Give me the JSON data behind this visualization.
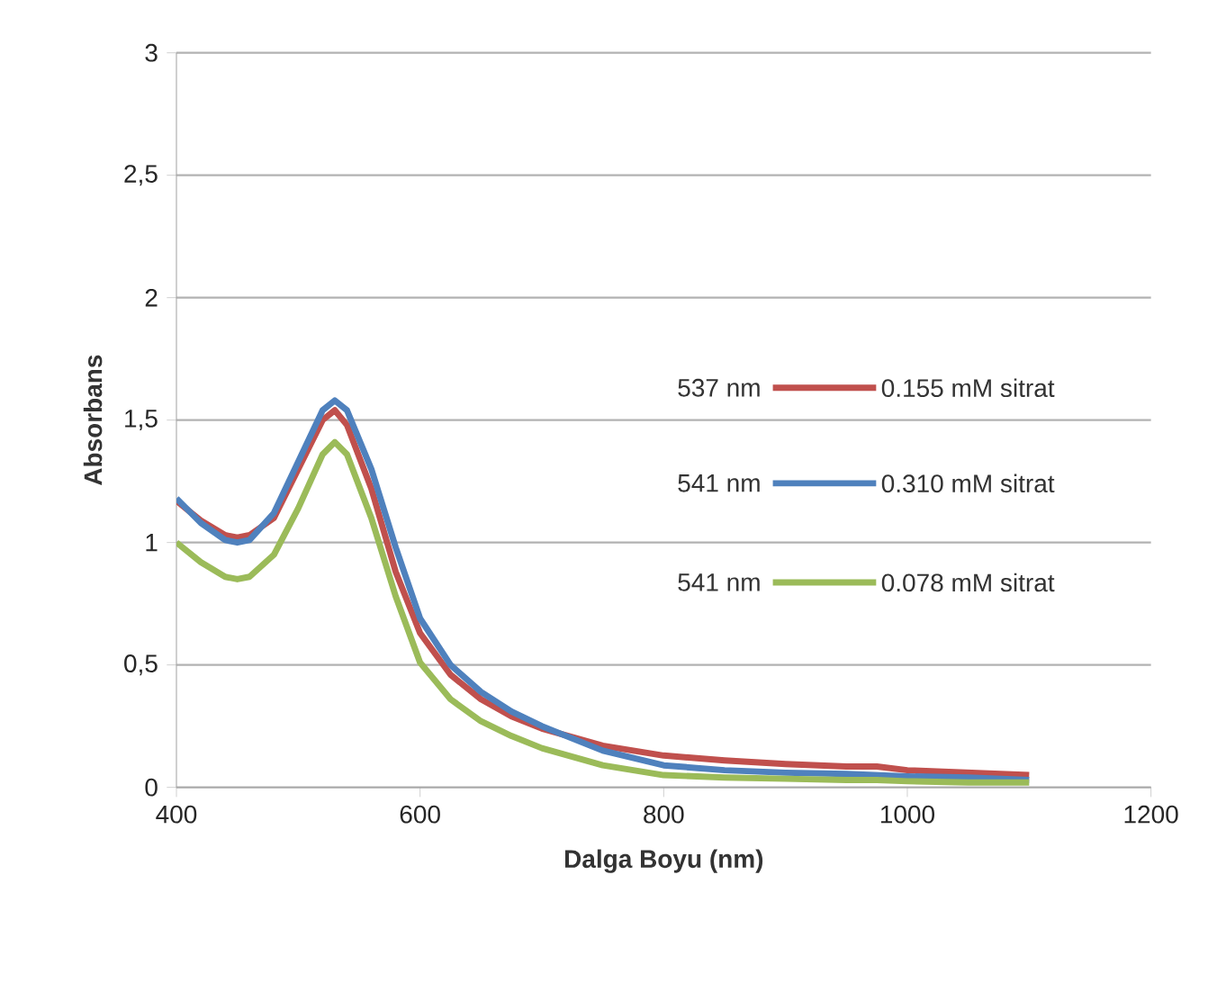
{
  "chart_data": {
    "type": "line",
    "xlabel": "Dalga Boyu (nm)",
    "ylabel": "Absorbans",
    "x": [
      400,
      420,
      440,
      450,
      460,
      480,
      500,
      520,
      530,
      540,
      560,
      580,
      600,
      625,
      650,
      675,
      700,
      750,
      800,
      850,
      900,
      950,
      975,
      1000,
      1050,
      1100
    ],
    "series": [
      {
        "name": "0.155 mM sitrat",
        "color": "#c0504d",
        "values": [
          1.17,
          1.09,
          1.03,
          1.02,
          1.03,
          1.1,
          1.3,
          1.5,
          1.54,
          1.48,
          1.22,
          0.88,
          0.63,
          0.46,
          0.36,
          0.29,
          0.24,
          0.17,
          0.13,
          0.11,
          0.095,
          0.085,
          0.085,
          0.07,
          0.06,
          0.05
        ]
      },
      {
        "name": "0.310 mM sitrat",
        "color": "#4f81bd",
        "values": [
          1.18,
          1.08,
          1.01,
          1.0,
          1.01,
          1.12,
          1.33,
          1.54,
          1.58,
          1.54,
          1.3,
          0.98,
          0.69,
          0.5,
          0.39,
          0.31,
          0.25,
          0.15,
          0.09,
          0.07,
          0.06,
          0.055,
          0.05,
          0.045,
          0.04,
          0.03
        ]
      },
      {
        "name": "0.078 mM sitrat",
        "color": "#9bbb59",
        "values": [
          1.0,
          0.92,
          0.86,
          0.85,
          0.86,
          0.95,
          1.14,
          1.36,
          1.41,
          1.36,
          1.1,
          0.78,
          0.51,
          0.36,
          0.27,
          0.21,
          0.16,
          0.09,
          0.05,
          0.04,
          0.035,
          0.03,
          0.03,
          0.025,
          0.02,
          0.02
        ]
      }
    ],
    "annotations": [
      "537 nm",
      "541 nm",
      "541 nm"
    ],
    "xlim": [
      400,
      1200
    ],
    "xticks": [
      400,
      600,
      800,
      1000,
      1200
    ],
    "ylim": [
      0,
      3
    ],
    "yticks": [
      0,
      {
        "value": 0.5,
        "label": "0,5"
      },
      1,
      {
        "value": 1.5,
        "label": "1,5"
      },
      2,
      {
        "value": 2.5,
        "label": "2,5"
      },
      3
    ],
    "grid": "y",
    "legend": "right",
    "marker": "none",
    "line_style": "solid"
  }
}
